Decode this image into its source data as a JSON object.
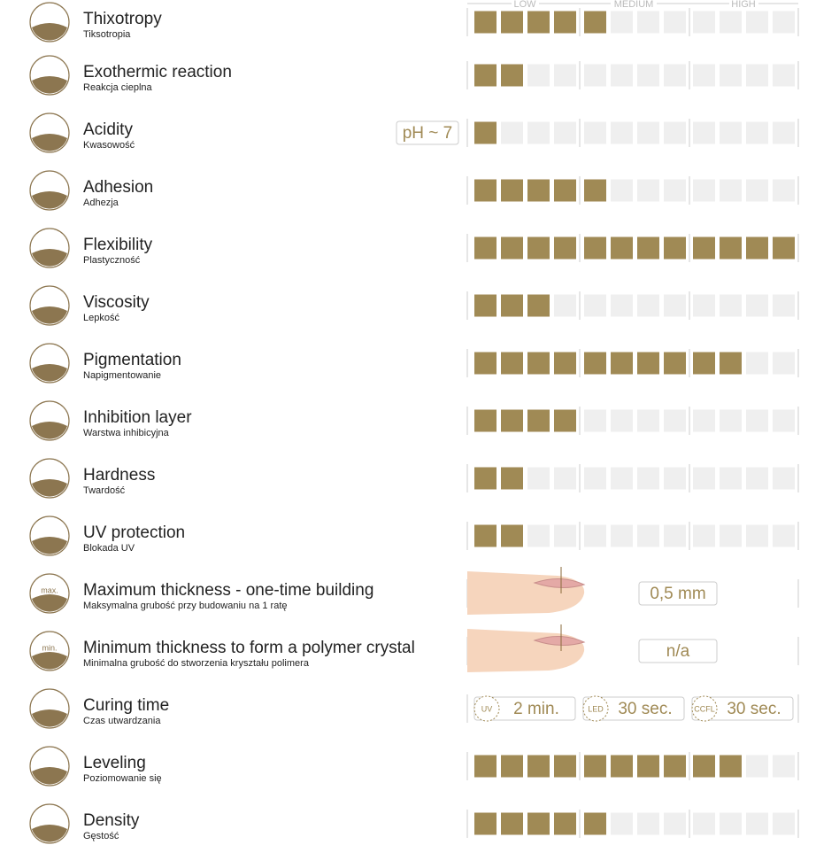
{
  "header": {
    "low": "LOW",
    "medium": "MEDIUM",
    "high": "HIGH"
  },
  "rows": [
    {
      "title": "Thixotropy",
      "subtitle": "Tiksotropia",
      "level": 5
    },
    {
      "title": "Exothermic reaction",
      "subtitle": "Reakcja cieplna",
      "level": 2
    },
    {
      "title": "Acidity",
      "subtitle": "Kwasowość",
      "level": 1,
      "badge": "pH ~ 7"
    },
    {
      "title": "Adhesion",
      "subtitle": "Adhezja",
      "level": 5
    },
    {
      "title": "Flexibility",
      "subtitle": "Plastyczność",
      "level": 12
    },
    {
      "title": "Viscosity",
      "subtitle": "Lepkość",
      "level": 3
    },
    {
      "title": "Pigmentation",
      "subtitle": "Napigmentowanie",
      "level": 10
    },
    {
      "title": "Inhibition layer",
      "subtitle": "Warstwa inhibicyjna",
      "level": 4
    },
    {
      "title": "Hardness",
      "subtitle": "Twardość",
      "level": 2
    },
    {
      "title": "UV protection",
      "subtitle": "Blokada UV",
      "level": 2
    },
    {
      "title": "Maximum thickness - one-time building",
      "subtitle": "Maksymalna grubość przy budowaniu na 1 ratę",
      "icon_label": "max.",
      "thickness": "0,5 mm"
    },
    {
      "title": "Minimum thickness to form a polymer crystal",
      "subtitle": "Minimalna grubość do stworzenia kryształu polimera",
      "icon_label": "min.",
      "thickness": "n/a"
    },
    {
      "title": "Curing time",
      "subtitle": "Czas utwardzania",
      "curing": [
        {
          "lamp": "UV",
          "time": "2 min."
        },
        {
          "lamp": "LED",
          "time": "30 sec."
        },
        {
          "lamp": "CCFL",
          "time": "30 sec."
        }
      ]
    },
    {
      "title": "Leveling",
      "subtitle": "Poziomowanie się",
      "level": 10
    },
    {
      "title": "Density",
      "subtitle": "Gęstość",
      "level": 5
    }
  ]
}
